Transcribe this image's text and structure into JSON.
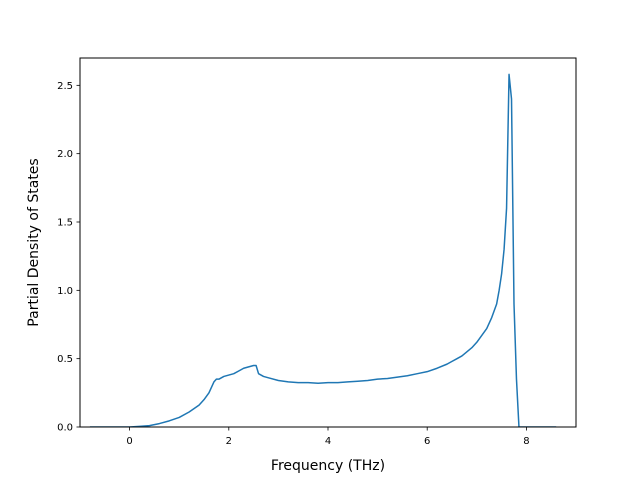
{
  "chart_data": {
    "type": "line",
    "xlabel": "Frequency (THz)",
    "ylabel": "Partial Density of States",
    "xlim": [
      -1.0,
      9.0
    ],
    "ylim": [
      0.0,
      2.7
    ],
    "xticks": [
      0,
      2,
      4,
      6,
      8
    ],
    "xtick_labels": [
      "0",
      "2",
      "4",
      "6",
      "8"
    ],
    "yticks": [
      0.0,
      0.5,
      1.0,
      1.5,
      2.0,
      2.5
    ],
    "ytick_labels": [
      "0.0",
      "0.5",
      "1.0",
      "1.5",
      "2.0",
      "2.5"
    ],
    "grid": false,
    "series": [
      {
        "color": "#1f77b4",
        "x": [
          -0.8,
          -0.4,
          0.0,
          0.2,
          0.4,
          0.6,
          0.8,
          1.0,
          1.2,
          1.4,
          1.5,
          1.6,
          1.7,
          1.75,
          1.8,
          1.9,
          2.0,
          2.1,
          2.2,
          2.3,
          2.4,
          2.5,
          2.55,
          2.6,
          2.7,
          2.8,
          3.0,
          3.2,
          3.4,
          3.6,
          3.8,
          4.0,
          4.2,
          4.4,
          4.6,
          4.8,
          5.0,
          5.2,
          5.4,
          5.6,
          5.8,
          6.0,
          6.2,
          6.4,
          6.5,
          6.6,
          6.7,
          6.8,
          6.9,
          7.0,
          7.1,
          7.2,
          7.3,
          7.4,
          7.45,
          7.5,
          7.55,
          7.6,
          7.65,
          7.7,
          7.75,
          7.8,
          7.85,
          7.9,
          8.0,
          8.3,
          8.6
        ],
        "y": [
          0.0,
          0.0,
          0.0,
          0.005,
          0.01,
          0.025,
          0.045,
          0.07,
          0.11,
          0.16,
          0.2,
          0.25,
          0.33,
          0.35,
          0.35,
          0.37,
          0.38,
          0.39,
          0.41,
          0.43,
          0.44,
          0.45,
          0.45,
          0.39,
          0.37,
          0.36,
          0.34,
          0.33,
          0.325,
          0.325,
          0.32,
          0.325,
          0.325,
          0.33,
          0.335,
          0.34,
          0.35,
          0.355,
          0.365,
          0.375,
          0.39,
          0.405,
          0.43,
          0.46,
          0.48,
          0.5,
          0.52,
          0.55,
          0.58,
          0.62,
          0.67,
          0.72,
          0.8,
          0.9,
          1.0,
          1.12,
          1.3,
          1.6,
          2.58,
          2.4,
          0.9,
          0.35,
          0.0,
          0.0,
          0.0,
          0.0,
          0.0
        ]
      }
    ]
  }
}
